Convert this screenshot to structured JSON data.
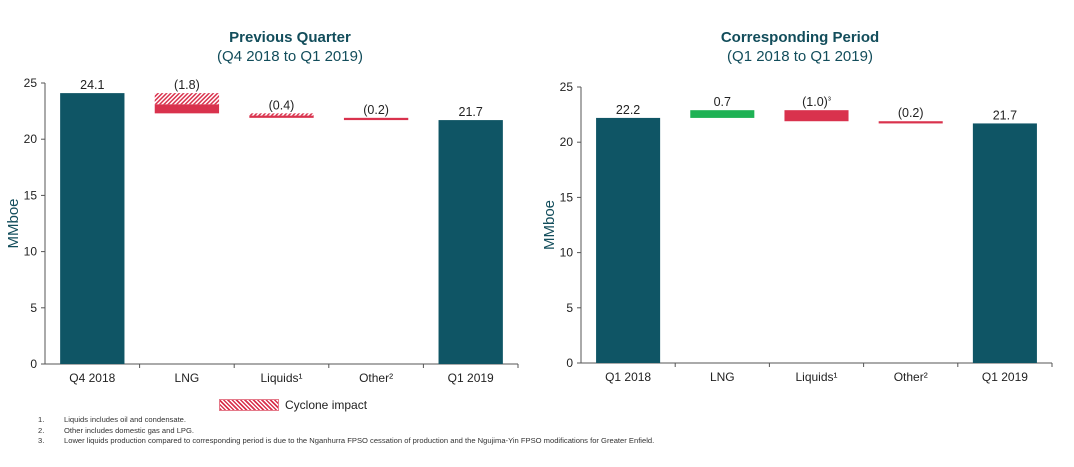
{
  "charts": [
    {
      "title": "Previous Quarter",
      "subtitle": "(Q4 2018 to Q1 2019)",
      "chart_data": {
        "type": "bar",
        "subtype": "waterfall",
        "ylabel": "MMboe",
        "ylim": [
          0,
          25
        ],
        "yticks": [
          "0",
          "5",
          "10",
          "15",
          "20",
          "25"
        ],
        "categories": [
          "Q4 2018",
          "LNG",
          "Liquids¹",
          "Other²",
          "Q1 2019"
        ],
        "bars": [
          {
            "kind": "total",
            "start": 0,
            "end": 24.1,
            "label": "24.1",
            "color": "#0f5565"
          },
          {
            "kind": "delta",
            "start": 24.1,
            "end": 22.3,
            "label": "(1.8)",
            "color": "#d9324d",
            "hatched_value": 1.0
          },
          {
            "kind": "delta",
            "start": 22.3,
            "end": 21.9,
            "label": "(0.4)",
            "color": "#d9324d",
            "hatched_value": 0.2
          },
          {
            "kind": "delta",
            "start": 21.9,
            "end": 21.7,
            "label": "(0.2)",
            "color": "#d9324d",
            "hatched_value": 0
          },
          {
            "kind": "total",
            "start": 0,
            "end": 21.7,
            "label": "21.7",
            "color": "#0f5565"
          }
        ]
      }
    },
    {
      "title": "Corresponding Period",
      "subtitle": "(Q1 2018 to Q1 2019)",
      "chart_data": {
        "type": "bar",
        "subtype": "waterfall",
        "ylabel": "MMboe",
        "ylim": [
          0,
          25
        ],
        "yticks": [
          "0",
          "5",
          "10",
          "15",
          "20",
          "25"
        ],
        "categories": [
          "Q1 2018",
          "LNG",
          "Liquids¹",
          "Other²",
          "Q1 2019"
        ],
        "bars": [
          {
            "kind": "total",
            "start": 0,
            "end": 22.2,
            "label": "22.2",
            "color": "#0f5565"
          },
          {
            "kind": "delta",
            "start": 22.2,
            "end": 22.9,
            "label": "0.7",
            "color": "#1eb254",
            "hatched_value": 0
          },
          {
            "kind": "delta",
            "start": 22.9,
            "end": 21.9,
            "label": "(1.0)³",
            "color": "#d9324d",
            "hatched_value": 0
          },
          {
            "kind": "delta",
            "start": 21.9,
            "end": 21.7,
            "label": "(0.2)",
            "color": "#d9324d",
            "hatched_value": 0
          },
          {
            "kind": "total",
            "start": 0,
            "end": 21.7,
            "label": "21.7",
            "color": "#0f5565"
          }
        ]
      }
    }
  ],
  "legend": {
    "label": "Cyclone impact"
  },
  "footnotes": [
    {
      "num": "1.",
      "text": "Liquids includes oil and condensate."
    },
    {
      "num": "2.",
      "text": "Other includes domestic gas and LPG."
    },
    {
      "num": "3.",
      "text": "Lower liquids production compared to corresponding period is due to the Nganhurra FPSO cessation of production and the Ngujima-Yin FPSO modifications for Greater Enfield."
    }
  ]
}
